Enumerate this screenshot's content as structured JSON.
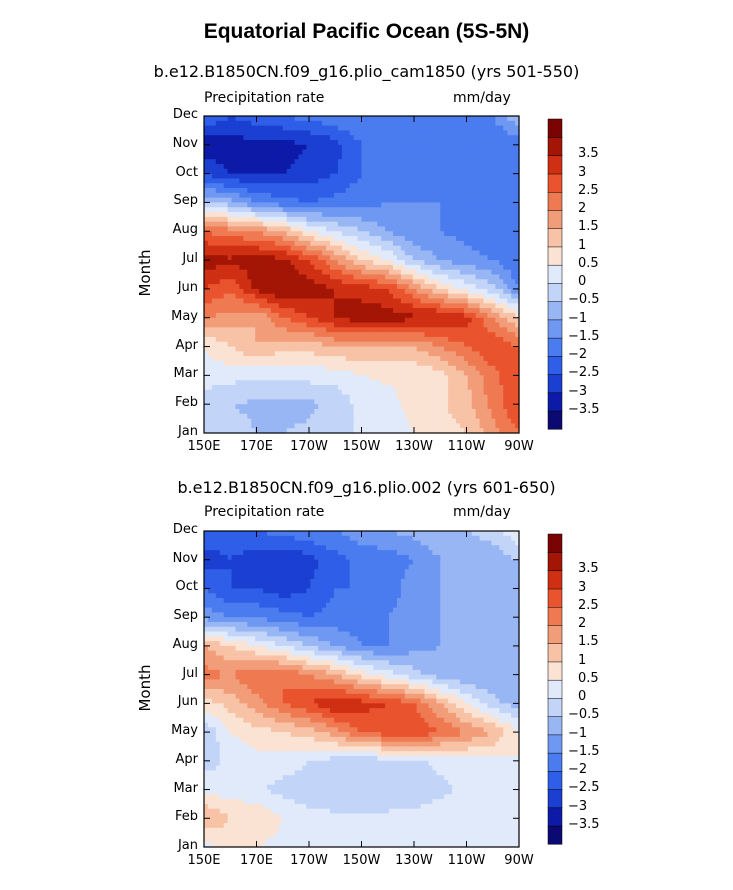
{
  "title": "Equatorial Pacific Ocean (5S-5N)",
  "colors": {
    "palette": [
      "#0a0a72",
      "#0d1aa8",
      "#1a3fd1",
      "#2f5ee8",
      "#4a7cf0",
      "#6e98f2",
      "#98b6f4",
      "#c2d4f7",
      "#e0eafa",
      "#fbe3d4",
      "#f7c2a5",
      "#f29d79",
      "#ef7a52",
      "#e9532e",
      "#cf2f12",
      "#a31505",
      "#7a0403"
    ]
  },
  "chart_data": [
    {
      "type": "heatmap",
      "title": "b.e12.B1850CN.f09_g16.plio_cam1850 (yrs 501-550)",
      "left_label": "Precipitation rate",
      "right_label": "mm/day",
      "ylabel": "Month",
      "x_tick_labels": [
        "150E",
        "170E",
        "170W",
        "150W",
        "130W",
        "110W",
        "90W"
      ],
      "y_tick_labels": [
        "Jan",
        "Feb",
        "Mar",
        "Apr",
        "May",
        "Jun",
        "Jul",
        "Aug",
        "Sep",
        "Oct",
        "Nov",
        "Dec"
      ],
      "x": [
        150,
        160,
        170,
        180,
        190,
        200,
        210,
        220,
        230,
        240,
        250,
        260,
        270
      ],
      "y": [
        "Jan",
        "Feb",
        "Mar",
        "Apr",
        "May",
        "Jun",
        "Jul",
        "Aug",
        "Sep",
        "Oct",
        "Nov",
        "Dec"
      ],
      "z": [
        [
          -0.5,
          -0.3,
          -0.5,
          -0.5,
          -0.4,
          -0.2,
          0.1,
          0.2,
          0.5,
          0.8,
          1.0,
          1.8,
          2.5
        ],
        [
          -0.3,
          -0.5,
          -0.6,
          -0.7,
          -0.6,
          -0.4,
          0.2,
          0.3,
          0.7,
          0.9,
          1.3,
          2.2,
          3.0
        ],
        [
          0.3,
          0.2,
          0.1,
          0.1,
          0.2,
          0.2,
          0.5,
          0.6,
          0.6,
          0.8,
          1.5,
          2.3,
          3.0
        ],
        [
          0.5,
          1.0,
          1.5,
          1.2,
          1.2,
          1.5,
          1.5,
          1.5,
          1.5,
          2.0,
          2.5,
          3.0,
          2.5
        ],
        [
          2.0,
          1.8,
          1.5,
          2.5,
          3.0,
          3.5,
          3.8,
          3.8,
          3.6,
          3.6,
          3.2,
          2.0,
          1.0
        ],
        [
          3.0,
          2.6,
          3.6,
          4.0,
          3.8,
          3.5,
          3.3,
          3.0,
          2.0,
          1.0,
          0.3,
          -0.3,
          -1.5
        ],
        [
          3.8,
          3.6,
          3.8,
          3.6,
          3.0,
          2.0,
          1.0,
          0.5,
          -0.5,
          -1.0,
          -1.3,
          -1.5,
          -2.0
        ],
        [
          2.5,
          2.2,
          2.0,
          1.5,
          0.5,
          0,
          -0.5,
          -1.0,
          -1.5,
          -1.5,
          -1.7,
          -2.0,
          -2.0
        ],
        [
          -0.5,
          -0.8,
          -1.5,
          -1.8,
          -2.0,
          -1.8,
          -1.7,
          -1.5,
          -1.5,
          -1.5,
          -1.5,
          -2.0,
          -2.0
        ],
        [
          -2.5,
          -3.0,
          -3.0,
          -3.0,
          -2.8,
          -2.5,
          -2.0,
          -1.8,
          -1.6,
          -1.5,
          -1.8,
          -2.0,
          -2.0
        ],
        [
          -3.5,
          -3.3,
          -3.1,
          -3.2,
          -3.0,
          -2.7,
          -2.0,
          -1.8,
          -1.5,
          -1.5,
          -1.8,
          -2.0,
          -1.9
        ],
        [
          -2.0,
          -2.5,
          -2.2,
          -2.0,
          -1.8,
          -1.6,
          -1.5,
          -1.6,
          -1.6,
          -1.5,
          -1.5,
          -1.5,
          -0.5
        ]
      ],
      "legend_levels": [
        "-3.5",
        "-3",
        "-2.5",
        "-2",
        "-1.5",
        "-1",
        "-0.5",
        "0",
        "0.5",
        "1",
        "1.5",
        "2",
        "2.5",
        "3",
        "3.5"
      ]
    },
    {
      "type": "heatmap",
      "title": "b.e12.B1850CN.f09_g16.plio.002 (yrs 601-650)",
      "left_label": "Precipitation rate",
      "right_label": "mm/day",
      "ylabel": "Month",
      "x_tick_labels": [
        "150E",
        "170E",
        "170W",
        "150W",
        "130W",
        "110W",
        "90W"
      ],
      "y_tick_labels": [
        "Jan",
        "Feb",
        "Mar",
        "Apr",
        "May",
        "Jun",
        "Jul",
        "Aug",
        "Sep",
        "Oct",
        "Nov",
        "Dec"
      ],
      "x": [
        150,
        160,
        170,
        180,
        190,
        200,
        210,
        220,
        230,
        240,
        250,
        260,
        270
      ],
      "y": [
        "Jan",
        "Feb",
        "Mar",
        "Apr",
        "May",
        "Jun",
        "Jul",
        "Aug",
        "Sep",
        "Oct",
        "Nov",
        "Dec"
      ],
      "z": [
        [
          0.3,
          0.8,
          0.5,
          0.3,
          0.2,
          0.2,
          0.2,
          0.2,
          0.2,
          0.3,
          0.3,
          0.3,
          0.3
        ],
        [
          1.5,
          1.0,
          1.0,
          0.5,
          0.2,
          0.1,
          0.1,
          0.1,
          0.1,
          0.2,
          0.2,
          0.2,
          0.3
        ],
        [
          0.4,
          0.2,
          0.1,
          -0.2,
          -0.3,
          -0.4,
          -0.4,
          -0.3,
          -0.2,
          -0.1,
          0.1,
          0.2,
          0.3
        ],
        [
          -0.3,
          0.2,
          0.3,
          0.3,
          0.0,
          -0.2,
          -0.3,
          -0.2,
          -0.1,
          0.1,
          0.3,
          0.4,
          0.5
        ],
        [
          -0.5,
          0.5,
          0.8,
          1.0,
          1.2,
          1.8,
          2.5,
          2.8,
          3.0,
          2.5,
          2.0,
          1.5,
          0.5
        ],
        [
          0.8,
          1.2,
          1.8,
          2.5,
          3.0,
          3.5,
          3.2,
          3.0,
          2.5,
          1.5,
          0.5,
          -0.3,
          -0.8
        ],
        [
          2.2,
          2.0,
          2.5,
          2.5,
          2.0,
          1.5,
          0.8,
          0.2,
          -0.3,
          -0.8,
          -1.0,
          -1.0,
          -1.0
        ],
        [
          1.5,
          1.0,
          0.5,
          0.0,
          -0.5,
          -1.0,
          -1.5,
          -1.5,
          -1.2,
          -1.0,
          -1.0,
          -1.0,
          -0.8
        ],
        [
          -1.2,
          -1.5,
          -1.6,
          -1.8,
          -2.0,
          -1.8,
          -1.8,
          -1.5,
          -1.2,
          -1.0,
          -1.0,
          -0.8,
          -0.8
        ],
        [
          -2.0,
          -2.5,
          -2.5,
          -2.8,
          -2.5,
          -2.0,
          -2.0,
          -1.8,
          -1.2,
          -1.0,
          -1.0,
          -0.8,
          -0.5
        ],
        [
          -2.8,
          -2.5,
          -2.8,
          -3.0,
          -2.7,
          -2.2,
          -1.8,
          -1.8,
          -1.5,
          -1.0,
          -0.8,
          -0.8,
          -0.5
        ],
        [
          -2.0,
          -2.2,
          -2.0,
          -1.8,
          -1.6,
          -1.5,
          -1.2,
          -1.0,
          -0.8,
          -0.6,
          -0.5,
          -0.3,
          0.5
        ]
      ],
      "legend_levels": [
        "-3.5",
        "-3",
        "-2.5",
        "-2",
        "-1.5",
        "-1",
        "-0.5",
        "0",
        "0.5",
        "1",
        "1.5",
        "2",
        "2.5",
        "3",
        "3.5"
      ]
    }
  ]
}
